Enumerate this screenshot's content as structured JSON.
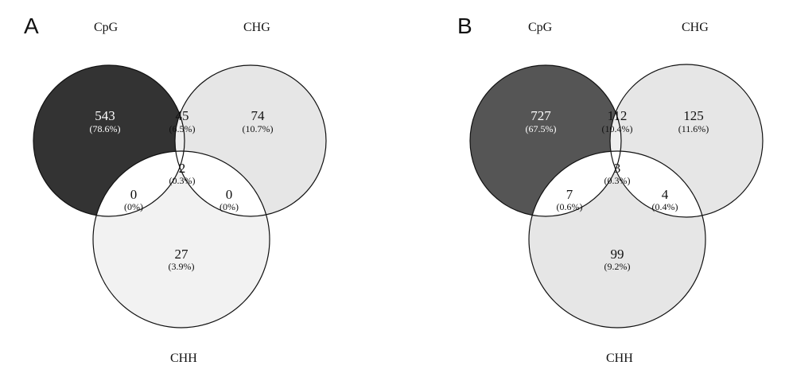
{
  "panels": [
    {
      "letter": "A",
      "sets": {
        "cpg": "CpG",
        "chg": "CHG",
        "chh": "CHH"
      },
      "colors": {
        "cpg": "#333333",
        "chg": "#e6e6e6",
        "chh": "#f2f2f2",
        "overlap_light": "#eeeeee",
        "overlap_white": "#ffffff"
      },
      "regions": {
        "cpg_only": {
          "count": "543",
          "pct": "(78.6%)"
        },
        "cpg_chg": {
          "count": "45",
          "pct": "(6.5%)"
        },
        "chg_only": {
          "count": "74",
          "pct": "(10.7%)"
        },
        "all_three": {
          "count": "2",
          "pct": "(0.3%)"
        },
        "cpg_chh": {
          "count": "0",
          "pct": "(0%)"
        },
        "chg_chh": {
          "count": "0",
          "pct": "(0%)"
        },
        "chh_only": {
          "count": "27",
          "pct": "(3.9%)"
        }
      }
    },
    {
      "letter": "B",
      "sets": {
        "cpg": "CpG",
        "chg": "CHG",
        "chh": "CHH"
      },
      "colors": {
        "cpg": "#555555",
        "chg": "#e6e6e6",
        "chh": "#e6e6e6",
        "overlap_light": "#eeeeee",
        "overlap_white": "#ffffff"
      },
      "regions": {
        "cpg_only": {
          "count": "727",
          "pct": "(67.5%)"
        },
        "cpg_chg": {
          "count": "112",
          "pct": "(10.4%)"
        },
        "chg_only": {
          "count": "125",
          "pct": "(11.6%)"
        },
        "all_three": {
          "count": "3",
          "pct": "(0.3%)"
        },
        "cpg_chh": {
          "count": "7",
          "pct": "(0.6%)"
        },
        "chg_chh": {
          "count": "4",
          "pct": "(0.4%)"
        },
        "chh_only": {
          "count": "99",
          "pct": "(9.2%)"
        }
      }
    }
  ]
}
